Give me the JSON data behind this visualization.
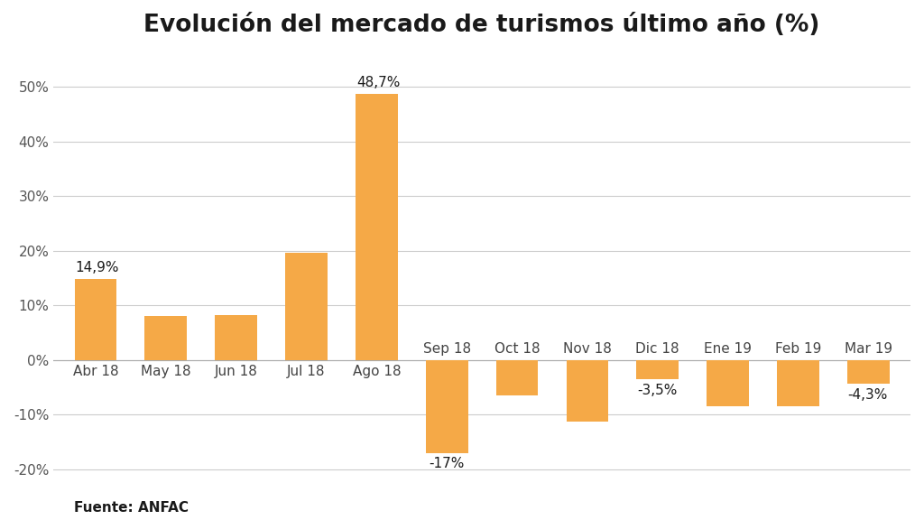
{
  "title": "Evolución del mercado de turismos último año (%)",
  "categories": [
    "Abr 18",
    "May 18",
    "Jun 18",
    "Jul 18",
    "Ago 18",
    "Sep 18",
    "Oct 18",
    "Nov 18",
    "Dic 18",
    "Ene 19",
    "Feb 19",
    "Mar 19"
  ],
  "values": [
    14.9,
    8.0,
    8.3,
    19.7,
    48.7,
    -17.0,
    -6.5,
    -11.3,
    -3.5,
    -8.5,
    -8.5,
    -4.3
  ],
  "bar_color": "#F5A947",
  "background_color": "#ffffff",
  "value_labels": [
    {
      "index": 0,
      "text": "14,9%",
      "side": "top"
    },
    {
      "index": 4,
      "text": "48,7%",
      "side": "top"
    },
    {
      "index": 5,
      "text": "-17%",
      "side": "bottom"
    },
    {
      "index": 8,
      "text": "-3,5%",
      "side": "bottom"
    },
    {
      "index": 11,
      "text": "-4,3%",
      "side": "bottom"
    }
  ],
  "ylim": [
    -23,
    56
  ],
  "yticks": [
    -20,
    -10,
    0,
    10,
    20,
    30,
    40,
    50
  ],
  "source_text": "Fuente: ANFAC",
  "title_fontsize": 19,
  "label_fontsize": 11,
  "tick_fontsize": 11,
  "source_fontsize": 11
}
